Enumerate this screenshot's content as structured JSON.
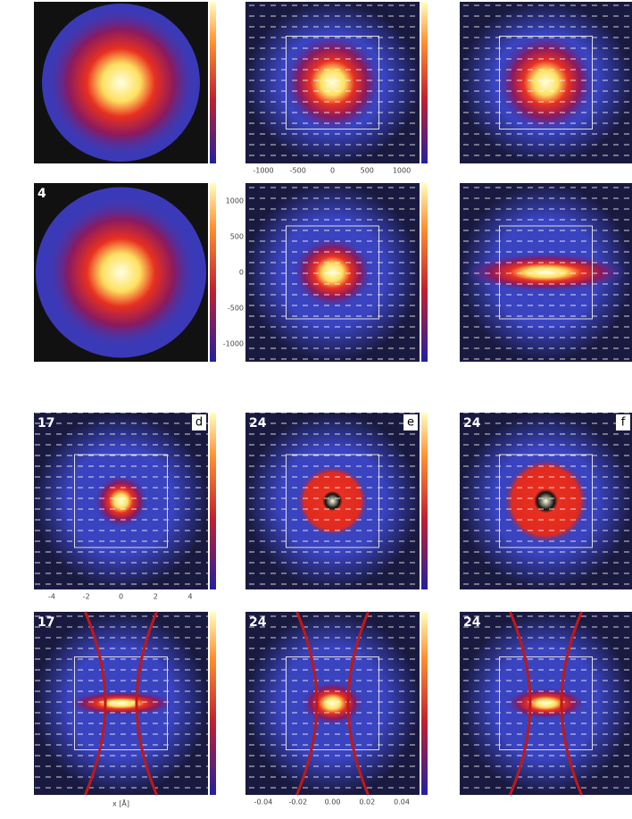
{
  "panels": [
    {},
    {
      "x_ticks": [
        "-1000",
        "-500",
        "0",
        "500",
        "1000"
      ]
    },
    {},
    {
      "tag": "4"
    },
    {
      "y_ticks": [
        "1000",
        "500",
        "0",
        "-500",
        "-1000"
      ]
    },
    {},
    {
      "tag": "17",
      "letter": "d",
      "x_ticks": [
        "-4",
        "-2",
        "0",
        "2",
        "4"
      ]
    },
    {
      "tag": "24",
      "letter": "e"
    },
    {
      "tag": "24",
      "letter": "f"
    },
    {
      "tag": "17",
      "x_label": "x [Å]"
    },
    {
      "tag": "24",
      "x_ticks": [
        "-0.04",
        "-0.02",
        "0.00",
        "0.02",
        "0.04"
      ]
    },
    {
      "tag": "24"
    }
  ]
}
